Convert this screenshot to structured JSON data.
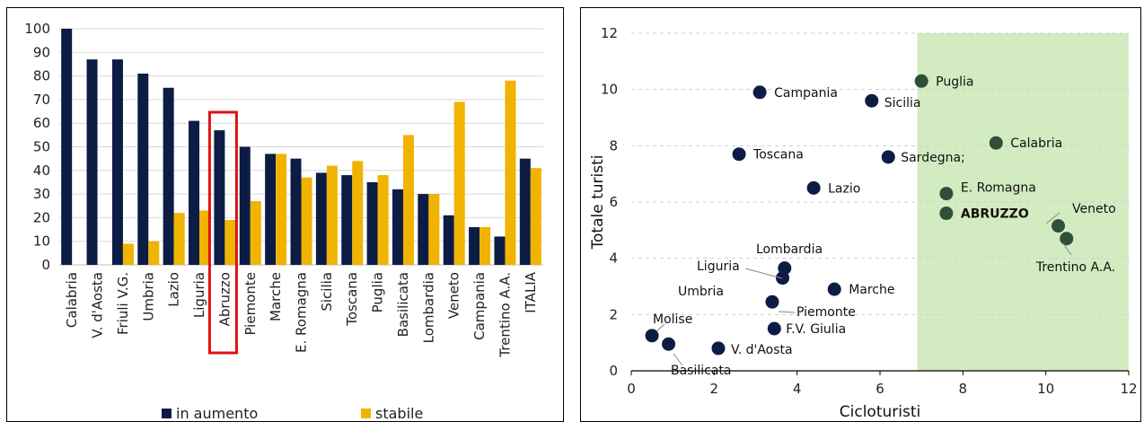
{
  "colors": {
    "navy": "#0d1c44",
    "gold": "#f0b400",
    "highlight_box": "#e01010",
    "green_band": "#d3ebc0",
    "dark_green": "#2f4f3a",
    "abruzzo_label": "#e8502a"
  },
  "chart_data": [
    {
      "type": "bar",
      "title": "",
      "ylim": [
        0,
        100
      ],
      "yticks": [
        0,
        10,
        20,
        30,
        40,
        50,
        60,
        70,
        80,
        90,
        100
      ],
      "grid": true,
      "legend_position": "bottom",
      "categories": [
        "Calabria",
        "V. d'Aosta",
        "Friuli V.G.",
        "Umbria",
        "Lazio",
        "Liguria",
        "Abruzzo",
        "Piemonte",
        "Marche",
        "E. Romagna",
        "Sicilia",
        "Toscana",
        "Puglia",
        "Basilicata",
        "Lombardia",
        "Veneto",
        "Campania",
        "Trentino A.A.",
        "ITALIA"
      ],
      "highlighted_category": "Abruzzo",
      "series": [
        {
          "name": "in aumento",
          "color": "#0d1c44",
          "values": [
            100,
            87,
            87,
            81,
            75,
            61,
            57,
            50,
            47,
            45,
            39,
            38,
            35,
            32,
            30,
            21,
            16,
            12,
            45
          ]
        },
        {
          "name": "stabile",
          "color": "#f0b400",
          "values": [
            0,
            0,
            9,
            10,
            22,
            23,
            19,
            27,
            47,
            37,
            42,
            44,
            38,
            55,
            30,
            69,
            16,
            78,
            41
          ]
        }
      ]
    },
    {
      "type": "scatter",
      "xlabel": "Cicloturisti",
      "ylabel": "Totale turisti",
      "xlim": [
        0,
        12
      ],
      "ylim": [
        0,
        12
      ],
      "xticks": [
        0,
        2,
        4,
        6,
        8,
        10,
        12
      ],
      "yticks": [
        0,
        2,
        4,
        6,
        8,
        10,
        12
      ],
      "grid": "horizontal dashed",
      "shaded_region_x": [
        6.9,
        12
      ],
      "points": [
        {
          "label": "Puglia",
          "x": 7.0,
          "y": 10.3,
          "color": "#2f4f3a"
        },
        {
          "label": "Campania",
          "x": 3.1,
          "y": 9.9,
          "color": "#0d1c44"
        },
        {
          "label": "Sicilia",
          "x": 5.8,
          "y": 9.6,
          "color": "#0d1c44"
        },
        {
          "label": "Calabria",
          "x": 8.8,
          "y": 8.1,
          "color": "#2f4f3a"
        },
        {
          "label": "Toscana",
          "x": 2.6,
          "y": 7.7,
          "color": "#0d1c44"
        },
        {
          "label": "Sardegna;",
          "x": 6.2,
          "y": 7.6,
          "color": "#0d1c44"
        },
        {
          "label": "Lazio",
          "x": 4.4,
          "y": 6.5,
          "color": "#0d1c44"
        },
        {
          "label": "E. Romagna",
          "x": 7.6,
          "y": 6.3,
          "color": "#2f4f3a"
        },
        {
          "label": "ABRUZZO",
          "x": 7.6,
          "y": 5.6,
          "color": "#2f4f3a"
        },
        {
          "label": "Veneto",
          "x": 10.3,
          "y": 5.15,
          "color": "#2f4f3a"
        },
        {
          "label": "Trentino A.A.",
          "x": 10.5,
          "y": 4.7,
          "color": "#2f4f3a"
        },
        {
          "label": "Lombardia",
          "x": 3.7,
          "y": 3.65,
          "color": "#0d1c44"
        },
        {
          "label": "Liguria",
          "x": 3.65,
          "y": 3.3,
          "color": "#0d1c44"
        },
        {
          "label": "Marche",
          "x": 4.9,
          "y": 2.9,
          "color": "#0d1c44"
        },
        {
          "label": "Umbria",
          "x": null,
          "y": null,
          "color": "#0d1c44"
        },
        {
          "label": "Piemonte",
          "x": 3.4,
          "y": 2.45,
          "color": "#0d1c44"
        },
        {
          "label": "F.V. Giulia",
          "x": 3.45,
          "y": 1.5,
          "color": "#0d1c44"
        },
        {
          "label": "Molise",
          "x": 0.5,
          "y": 1.25,
          "color": "#0d1c44"
        },
        {
          "label": "Basilicata",
          "x": 0.9,
          "y": 0.95,
          "color": "#0d1c44"
        },
        {
          "label": "V. d'Aosta",
          "x": 2.1,
          "y": 0.8,
          "color": "#0d1c44"
        }
      ]
    }
  ]
}
